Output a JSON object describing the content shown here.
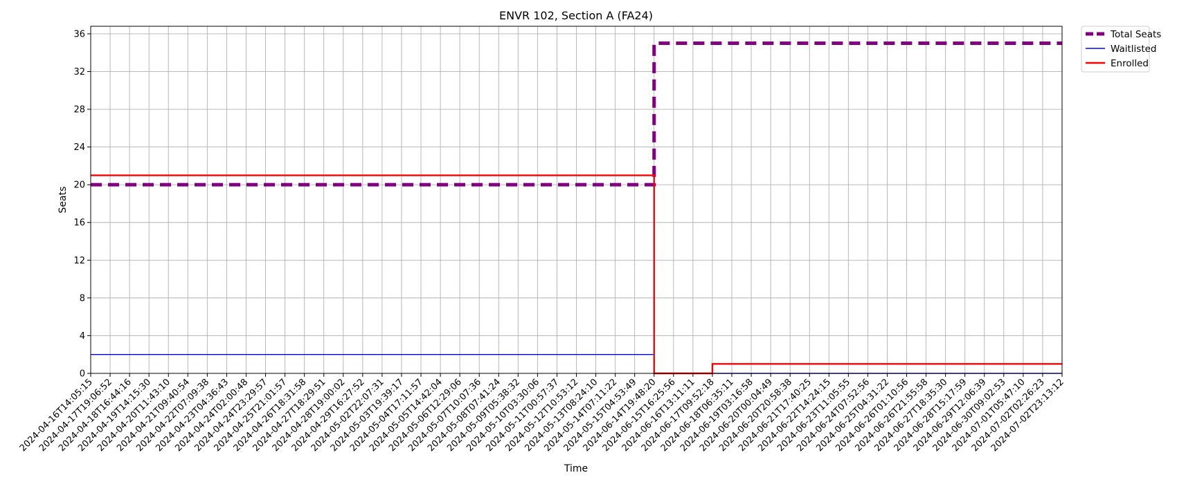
{
  "chart_data": {
    "type": "line",
    "title": "ENVR 102, Section A (FA24)",
    "xlabel": "Time",
    "ylabel": "Seats",
    "ylim": [
      0,
      36.8
    ],
    "yticks": [
      0,
      4,
      8,
      12,
      16,
      20,
      24,
      28,
      32,
      36
    ],
    "grid": true,
    "legend_position": "outside top-right",
    "categories": [
      "2024-04-16T14:05:15",
      "2024-04-17T19:06:52",
      "2024-04-18T16:44:16",
      "2024-04-19T14:15:30",
      "2024-04-20T11:43:10",
      "2024-04-21T09:40:54",
      "2024-04-22T07:09:38",
      "2024-04-23T04:36:43",
      "2024-04-24T02:00:48",
      "2024-04-24T23:29:57",
      "2024-04-25T21:01:57",
      "2024-04-26T18:31:58",
      "2024-04-27T18:29:51",
      "2024-04-28T19:00:02",
      "2024-04-29T16:27:52",
      "2024-05-02T22:07:31",
      "2024-05-03T19:39:17",
      "2024-05-04T17:11:57",
      "2024-05-05T14:42:04",
      "2024-05-06T12:29:06",
      "2024-05-07T10:07:36",
      "2024-05-08T07:41:24",
      "2024-05-09T05:38:32",
      "2024-05-10T03:30:06",
      "2024-05-11T00:57:37",
      "2024-05-12T10:53:12",
      "2024-05-13T08:24:10",
      "2024-05-14T07:11:22",
      "2024-05-15T04:53:49",
      "2024-06-14T19:48:20",
      "2024-06-15T16:25:56",
      "2024-06-16T13:11:11",
      "2024-06-17T09:52:18",
      "2024-06-18T06:35:11",
      "2024-06-19T03:16:58",
      "2024-06-20T00:04:49",
      "2024-06-20T20:58:38",
      "2024-06-21T17:40:25",
      "2024-06-22T14:24:15",
      "2024-06-23T11:05:55",
      "2024-06-24T07:52:56",
      "2024-06-25T04:31:22",
      "2024-06-26T01:10:56",
      "2024-06-26T21:55:58",
      "2024-06-27T18:35:30",
      "2024-06-28T15:17:59",
      "2024-06-29T12:06:39",
      "2024-06-30T09:02:53",
      "2024-07-01T05:47:10",
      "2024-07-02T02:26:23",
      "2024-07-02T23:13:12"
    ],
    "series": [
      {
        "name": "Total Seats",
        "color": "#800080",
        "style": "dashed",
        "step": "post",
        "values": [
          20,
          20,
          20,
          20,
          20,
          20,
          20,
          20,
          20,
          20,
          20,
          20,
          20,
          20,
          20,
          20,
          20,
          20,
          20,
          20,
          20,
          20,
          20,
          20,
          20,
          20,
          20,
          20,
          20,
          35,
          35,
          35,
          35,
          35,
          35,
          35,
          35,
          35,
          35,
          35,
          35,
          35,
          35,
          35,
          35,
          35,
          35,
          35,
          35,
          35,
          35
        ]
      },
      {
        "name": "Waitlisted",
        "color": "#0000ff",
        "style": "solid",
        "step": "post",
        "values": [
          2,
          2,
          2,
          2,
          2,
          2,
          2,
          2,
          2,
          2,
          2,
          2,
          2,
          2,
          2,
          2,
          2,
          2,
          2,
          2,
          2,
          2,
          2,
          2,
          2,
          2,
          2,
          2,
          2,
          0,
          0,
          0,
          0,
          0,
          0,
          0,
          0,
          0,
          0,
          0,
          0,
          0,
          0,
          0,
          0,
          0,
          0,
          0,
          0,
          0,
          0
        ]
      },
      {
        "name": "Enrolled",
        "color": "#ff0000",
        "style": "solid",
        "step": "post",
        "values": [
          21,
          21,
          21,
          21,
          21,
          21,
          21,
          21,
          21,
          21,
          21,
          21,
          21,
          21,
          21,
          21,
          21,
          21,
          21,
          21,
          21,
          21,
          21,
          21,
          21,
          21,
          21,
          21,
          21,
          0,
          0,
          0,
          1,
          1,
          1,
          1,
          1,
          1,
          1,
          1,
          1,
          1,
          1,
          1,
          1,
          1,
          1,
          1,
          1,
          1,
          1
        ]
      }
    ]
  }
}
